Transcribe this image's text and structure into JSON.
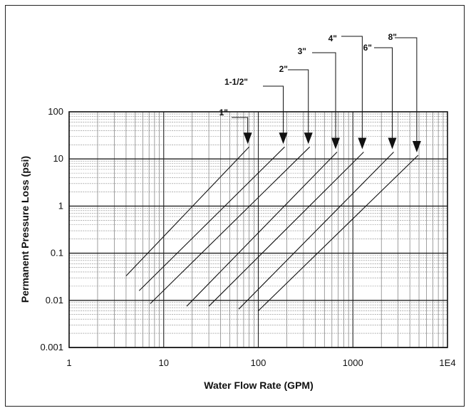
{
  "chart_data": {
    "type": "line",
    "xlabel": "Water Flow Rate (GPM)",
    "ylabel": "Permanent Pressure Loss (psi)",
    "x_scale": "log",
    "y_scale": "log",
    "xlim": [
      1,
      10000
    ],
    "ylim": [
      0.001,
      100
    ],
    "x_tick_labels": [
      "1",
      "10",
      "100",
      "1000",
      "1E4"
    ],
    "y_tick_labels": [
      "0.001",
      "0.01",
      "0.1",
      "1",
      "10",
      "100"
    ],
    "grid": true,
    "series": [
      {
        "name": "1\"",
        "x": [
          4,
          80
        ],
        "y": [
          0.033,
          18
        ]
      },
      {
        "name": "1-1/2\"",
        "x": [
          5.5,
          190
        ],
        "y": [
          0.016,
          18
        ]
      },
      {
        "name": "2\"",
        "x": [
          7.2,
          350
        ],
        "y": [
          0.0085,
          18
        ]
      },
      {
        "name": "3\"",
        "x": [
          17.5,
          680
        ],
        "y": [
          0.0075,
          14
        ]
      },
      {
        "name": "4\"",
        "x": [
          30,
          1300
        ],
        "y": [
          0.0075,
          14
        ]
      },
      {
        "name": "6\"",
        "x": [
          62,
          2700
        ],
        "y": [
          0.0065,
          14
        ]
      },
      {
        "name": "8\"",
        "x": [
          100,
          4900
        ],
        "y": [
          0.006,
          12
        ]
      }
    ]
  }
}
